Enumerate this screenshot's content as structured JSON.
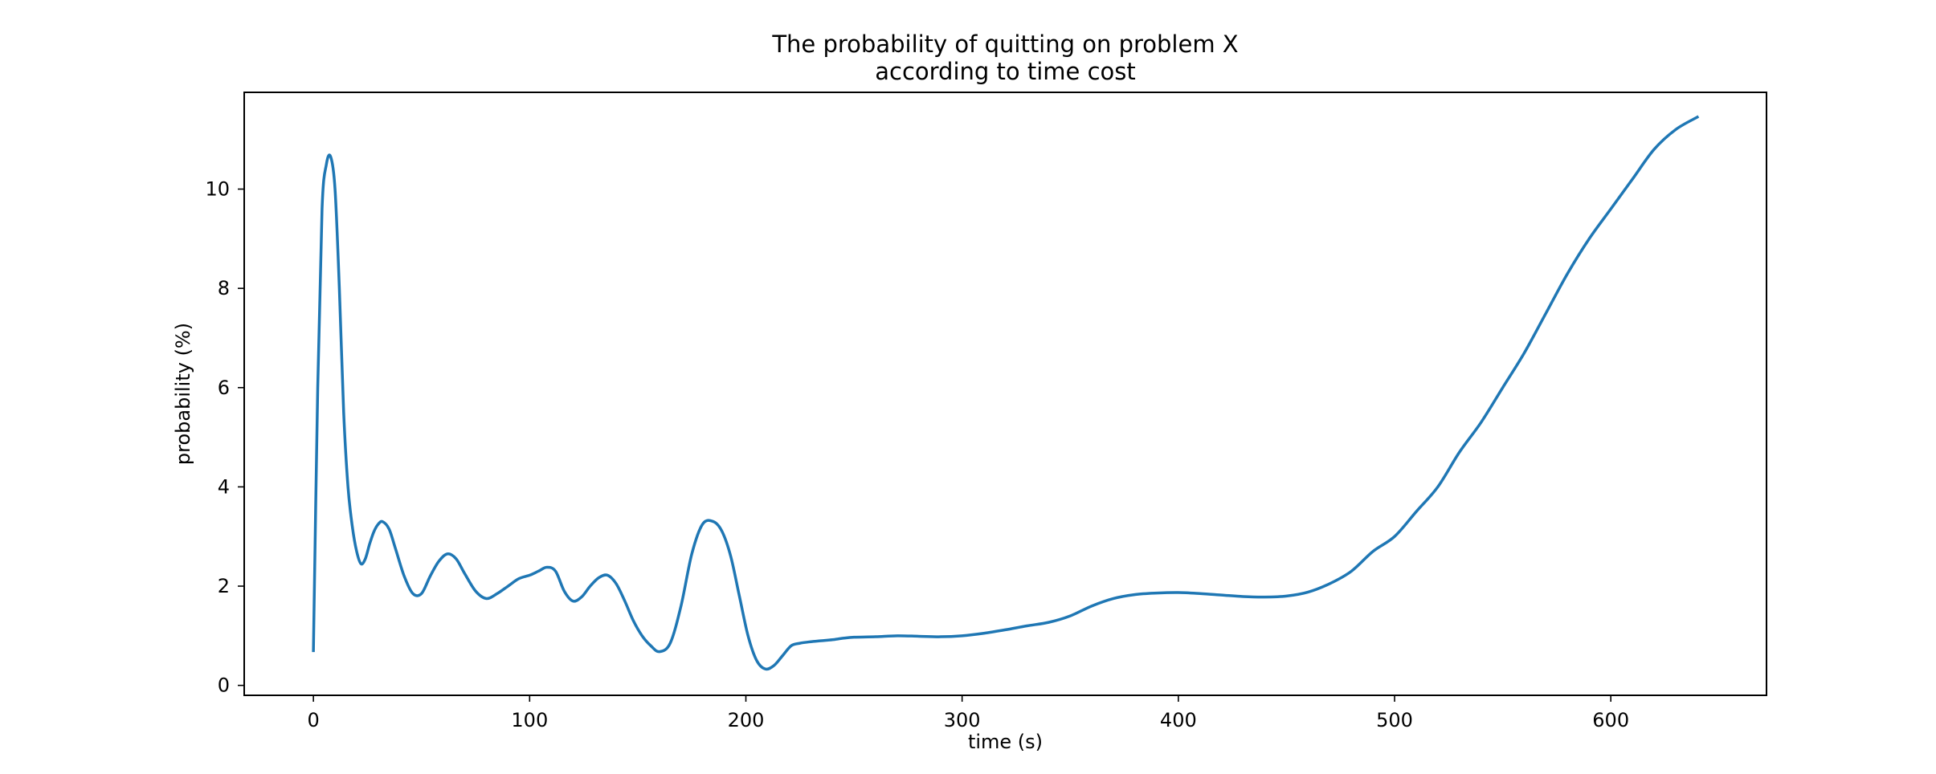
{
  "chart_data": {
    "type": "line",
    "title": "The probability of quitting on problem X\naccording to time cost",
    "title_lines": [
      "The probability of quitting on problem X",
      "according to time cost"
    ],
    "xlabel": "time (s)",
    "ylabel": "probability (%)",
    "xlim": [
      -32,
      672
    ],
    "ylim": [
      -0.2,
      11.95
    ],
    "xticks": [
      0,
      100,
      200,
      300,
      400,
      500,
      600
    ],
    "yticks": [
      0,
      2,
      4,
      6,
      8,
      10
    ],
    "grid": false,
    "legend": "none",
    "line_color": "#1f77b4",
    "series": [
      {
        "x": [
          0,
          2,
          4,
          6,
          8,
          10,
          12,
          14,
          16,
          18,
          20,
          22,
          24,
          26,
          28,
          30,
          32,
          35,
          38,
          42,
          46,
          50,
          54,
          58,
          62,
          66,
          70,
          75,
          80,
          85,
          90,
          95,
          100,
          104,
          108,
          112,
          116,
          120,
          124,
          128,
          132,
          136,
          140,
          144,
          148,
          152,
          156,
          160,
          165,
          170,
          175,
          180,
          185,
          189,
          193,
          197,
          201,
          205,
          209,
          213,
          217,
          221,
          225,
          230,
          235,
          240,
          245,
          250,
          260,
          270,
          280,
          290,
          300,
          310,
          320,
          330,
          340,
          350,
          360,
          370,
          380,
          390,
          400,
          410,
          420,
          430,
          440,
          450,
          460,
          470,
          480,
          490,
          500,
          510,
          520,
          530,
          540,
          550,
          560,
          570,
          580,
          590,
          600,
          610,
          620,
          630,
          640
        ],
        "y": [
          0.7,
          6.0,
          9.6,
          10.5,
          10.65,
          10.0,
          8.0,
          5.5,
          4.0,
          3.2,
          2.7,
          2.45,
          2.55,
          2.85,
          3.1,
          3.25,
          3.3,
          3.15,
          2.75,
          2.2,
          1.85,
          1.85,
          2.2,
          2.5,
          2.65,
          2.55,
          2.25,
          1.9,
          1.75,
          1.85,
          2.0,
          2.15,
          2.22,
          2.3,
          2.38,
          2.3,
          1.9,
          1.7,
          1.78,
          2.0,
          2.17,
          2.22,
          2.05,
          1.7,
          1.3,
          1.0,
          0.8,
          0.68,
          0.85,
          1.6,
          2.65,
          3.25,
          3.3,
          3.1,
          2.6,
          1.8,
          1.0,
          0.5,
          0.33,
          0.4,
          0.6,
          0.8,
          0.85,
          0.88,
          0.9,
          0.92,
          0.95,
          0.97,
          0.98,
          1.0,
          0.99,
          0.98,
          1.0,
          1.05,
          1.12,
          1.2,
          1.27,
          1.4,
          1.6,
          1.75,
          1.83,
          1.86,
          1.87,
          1.85,
          1.82,
          1.79,
          1.78,
          1.8,
          1.88,
          2.05,
          2.3,
          2.7,
          3.0,
          3.5,
          4.0,
          4.7,
          5.3,
          6.0,
          6.7,
          7.5,
          8.3,
          9.0,
          9.6,
          10.2,
          10.8,
          11.2,
          11.45
        ]
      }
    ]
  }
}
